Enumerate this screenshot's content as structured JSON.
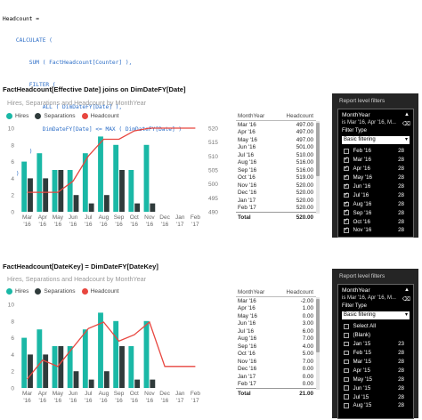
{
  "code": {
    "lines": [
      "Headcount =",
      "    CALCULATE (",
      "        SUM ( FactHeadcount[Counter] ),",
      "        FILTER (",
      "            ALL ( DimDateFY[Date] ),",
      "            DimDateFY[Date] <= MAX ( DimDateFY[Date] )",
      "        )",
      "    )"
    ]
  },
  "section1": {
    "heading": "FactHeadcount[Effective Date] joins on DimDateFY[Date]",
    "chart_title": "Hires, Separations and Headcount by MonthYear",
    "legend": [
      "Hires",
      "Separations",
      "Headcount"
    ]
  },
  "section2": {
    "heading": "FactHeadcount[DateKey] = DimDateFY[DateKey]",
    "chart_title": "Hires, Separations and Headcount by MonthYear",
    "legend": [
      "Hires",
      "Separations",
      "Headcount"
    ]
  },
  "colors": {
    "hires": "#1ab8a6",
    "separations": "#2f3b3b",
    "headcount": "#e8463f"
  },
  "chart_data": [
    {
      "type": "bar",
      "title": "Hires, Separations and Headcount by MonthYear",
      "categories": [
        "Mar '16",
        "Apr '16",
        "May '16",
        "Jun '16",
        "Jul '16",
        "Aug '16",
        "Sep '16",
        "Oct '16",
        "Nov '16",
        "Dec '16",
        "Jan '17",
        "Feb '17"
      ],
      "x_tick_labels": [
        [
          "Mar",
          "'16"
        ],
        [
          "Apr",
          "'16"
        ],
        [
          "May",
          "'16"
        ],
        [
          "Jun",
          "'16"
        ],
        [
          "Jul",
          "'16"
        ],
        [
          "Aug",
          "'16"
        ],
        [
          "Sep",
          "'16"
        ],
        [
          "Oct",
          "'16"
        ],
        [
          "Nov",
          "'16"
        ],
        [
          "Dec",
          "'16"
        ],
        [
          "Jan",
          "'17"
        ],
        [
          "Feb",
          "'17"
        ]
      ],
      "series": [
        {
          "name": "Hires",
          "values": [
            6,
            7,
            5,
            5,
            7,
            9,
            8,
            5,
            8,
            0,
            0,
            0
          ]
        },
        {
          "name": "Separations",
          "values": [
            4,
            4,
            5,
            2,
            1,
            2,
            5,
            1,
            1,
            0,
            0,
            0
          ]
        },
        {
          "name": "Headcount",
          "axis": "right",
          "values": [
            497,
            497,
            497,
            501,
            510,
            516,
            516,
            519,
            520,
            520,
            520,
            520
          ]
        }
      ],
      "ylim": [
        0,
        10
      ],
      "y_ticks": [
        0,
        2,
        4,
        6,
        8,
        10
      ],
      "y2lim": [
        490,
        520
      ],
      "y2_ticks": [
        490,
        495,
        500,
        505,
        510,
        515,
        520
      ]
    },
    {
      "type": "bar",
      "title": "Hires, Separations and Headcount by MonthYear",
      "categories": [
        "Mar '16",
        "Apr '16",
        "May '16",
        "Jun '16",
        "Jul '16",
        "Aug '16",
        "Sep '16",
        "Oct '16",
        "Nov '16",
        "Dec '16",
        "Jan '17",
        "Feb '17"
      ],
      "x_tick_labels": [
        [
          "Mar",
          "'16"
        ],
        [
          "Apr",
          "'16"
        ],
        [
          "May",
          "'16"
        ],
        [
          "Jun",
          "'16"
        ],
        [
          "Jul",
          "'16"
        ],
        [
          "Aug",
          "'16"
        ],
        [
          "Sep",
          "'16"
        ],
        [
          "Oct",
          "'16"
        ],
        [
          "Nov",
          "'16"
        ],
        [
          "Dec",
          "'16"
        ],
        [
          "Jan",
          "'17"
        ],
        [
          "Feb",
          "'17"
        ]
      ],
      "series": [
        {
          "name": "Hires",
          "values": [
            6,
            7,
            5,
            5,
            7,
            9,
            8,
            5,
            8,
            0,
            0,
            0
          ]
        },
        {
          "name": "Separations",
          "values": [
            4,
            4,
            5,
            2,
            1,
            2,
            5,
            1,
            1,
            0,
            0,
            0
          ]
        },
        {
          "name": "Headcount",
          "axis": "right",
          "values": [
            -2,
            1,
            0,
            3,
            6,
            7,
            4,
            5,
            7,
            0,
            0,
            0
          ]
        }
      ],
      "ylim": [
        0,
        10
      ],
      "y_ticks": [
        0,
        2,
        4,
        6,
        8,
        10
      ]
    }
  ],
  "table1": {
    "headers": [
      "MonthYear",
      "Headcount"
    ],
    "rows": [
      [
        "Mar '16",
        "497.00"
      ],
      [
        "Apr '16",
        "497.00"
      ],
      [
        "May '16",
        "497.00"
      ],
      [
        "Jun '16",
        "501.00"
      ],
      [
        "Jul '16",
        "510.00"
      ],
      [
        "Aug '16",
        "516.00"
      ],
      [
        "Sep '16",
        "516.00"
      ],
      [
        "Oct '16",
        "519.00"
      ],
      [
        "Nov '16",
        "520.00"
      ],
      [
        "Dec '16",
        "520.00"
      ],
      [
        "Jan '17",
        "520.00"
      ],
      [
        "Feb '17",
        "520.00"
      ]
    ],
    "total_label": "Total",
    "total_value": "520.00"
  },
  "table2": {
    "headers": [
      "MonthYear",
      "Headcount"
    ],
    "rows": [
      [
        "Mar '16",
        "-2.00"
      ],
      [
        "Apr '16",
        "1.00"
      ],
      [
        "May '16",
        "0.00"
      ],
      [
        "Jun '16",
        "3.00"
      ],
      [
        "Jul '16",
        "6.00"
      ],
      [
        "Aug '16",
        "7.00"
      ],
      [
        "Sep '16",
        "4.00"
      ],
      [
        "Oct '16",
        "5.00"
      ],
      [
        "Nov '16",
        "7.00"
      ],
      [
        "Dec '16",
        "0.00"
      ],
      [
        "Jan '17",
        "0.00"
      ],
      [
        "Feb '17",
        "0.00"
      ]
    ],
    "total_label": "Total",
    "total_value": "21.00"
  },
  "filters1": {
    "pane_title": "Report level filters",
    "field": "MonthYear",
    "summary": "is Mar '16, Apr '16, M...",
    "filter_type_label": "Filter Type",
    "filter_type_value": "Basic filtering",
    "items": [
      {
        "label": "Feb '16",
        "count": "28",
        "checked": false
      },
      {
        "label": "Mar '16",
        "count": "28",
        "checked": true
      },
      {
        "label": "Apr '16",
        "count": "28",
        "checked": true
      },
      {
        "label": "May '16",
        "count": "28",
        "checked": true
      },
      {
        "label": "Jun '16",
        "count": "28",
        "checked": true
      },
      {
        "label": "Jul '16",
        "count": "28",
        "checked": true
      },
      {
        "label": "Aug '16",
        "count": "28",
        "checked": true
      },
      {
        "label": "Sep '16",
        "count": "28",
        "checked": true
      },
      {
        "label": "Oct '16",
        "count": "28",
        "checked": true
      },
      {
        "label": "Nov '16",
        "count": "28",
        "checked": true
      }
    ]
  },
  "filters2": {
    "pane_title": "Report level filters",
    "field": "MonthYear",
    "summary": "is Mar '16, Apr '16, M...",
    "filter_type_label": "Filter Type",
    "filter_type_value": "Basic filtering",
    "items": [
      {
        "label": "Select All",
        "count": "",
        "checked": false
      },
      {
        "label": "(Blank)",
        "count": "",
        "checked": false
      },
      {
        "label": "Jan '15",
        "count": "23",
        "checked": false
      },
      {
        "label": "Feb '15",
        "count": "28",
        "checked": false
      },
      {
        "label": "Mar '15",
        "count": "28",
        "checked": false
      },
      {
        "label": "Apr '15",
        "count": "28",
        "checked": false
      },
      {
        "label": "May '15",
        "count": "28",
        "checked": false
      },
      {
        "label": "Jun '15",
        "count": "28",
        "checked": false
      },
      {
        "label": "Jul '15",
        "count": "28",
        "checked": false
      },
      {
        "label": "Aug '15",
        "count": "28",
        "checked": false
      }
    ]
  }
}
